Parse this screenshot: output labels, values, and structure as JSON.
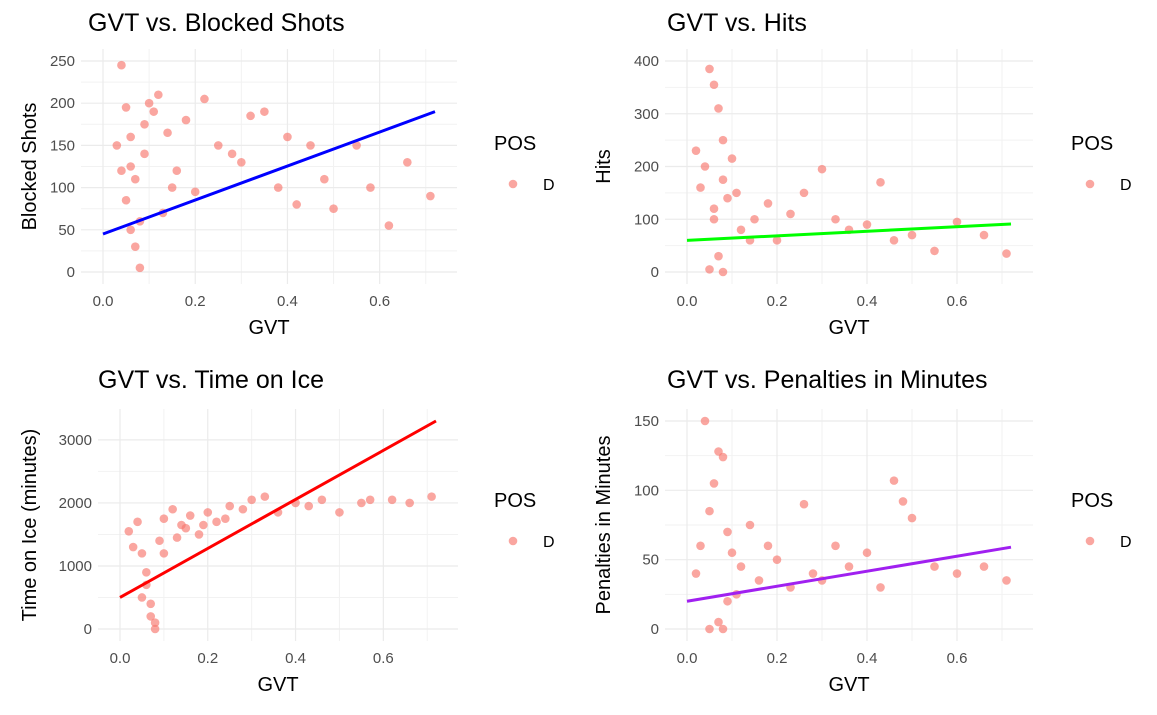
{
  "chart_data": [
    {
      "type": "scatter",
      "title": "GVT vs. Blocked Shots",
      "xlabel": "GVT",
      "ylabel": "Blocked Shots",
      "xlim": [
        0.0,
        0.72
      ],
      "ylim": [
        0,
        250
      ],
      "xticks": [
        0.0,
        0.2,
        0.4,
        0.6
      ],
      "xtick_labels": [
        "0.0",
        "0.2",
        "0.4",
        "0.6"
      ],
      "yticks": [
        0,
        50,
        100,
        150,
        200,
        250
      ],
      "ytick_labels": [
        "0",
        "50",
        "100",
        "150",
        "200",
        "250"
      ],
      "grid": true,
      "legend": {
        "title": "POS",
        "entries": [
          "D"
        ],
        "position": "right"
      },
      "point_color": "#F8766D",
      "series": [
        {
          "name": "D",
          "x": [
            0.04,
            0.05,
            0.06,
            0.07,
            0.08,
            0.03,
            0.06,
            0.09,
            0.1,
            0.12,
            0.14,
            0.16,
            0.18,
            0.2,
            0.22,
            0.25,
            0.28,
            0.3,
            0.32,
            0.35,
            0.38,
            0.4,
            0.42,
            0.45,
            0.48,
            0.5,
            0.55,
            0.58,
            0.62,
            0.66,
            0.71,
            0.05,
            0.07,
            0.09,
            0.11,
            0.13,
            0.15,
            0.08,
            0.06,
            0.04
          ],
          "y": [
            245,
            195,
            160,
            110,
            60,
            150,
            125,
            175,
            200,
            210,
            165,
            120,
            180,
            95,
            205,
            150,
            140,
            130,
            185,
            190,
            100,
            160,
            80,
            150,
            110,
            75,
            150,
            100,
            55,
            130,
            90,
            85,
            30,
            140,
            190,
            70,
            100,
            5,
            50,
            120
          ]
        }
      ],
      "trend_line": {
        "color": "#0000FF",
        "x": [
          0.0,
          0.72
        ],
        "y": [
          45,
          190
        ]
      }
    },
    {
      "type": "scatter",
      "title": "GVT vs. Hits",
      "xlabel": "GVT",
      "ylabel": "Hits",
      "xlim": [
        0.0,
        0.72
      ],
      "ylim": [
        0,
        400
      ],
      "xticks": [
        0.0,
        0.2,
        0.4,
        0.6
      ],
      "xtick_labels": [
        "0.0",
        "0.2",
        "0.4",
        "0.6"
      ],
      "yticks": [
        0,
        100,
        200,
        300,
        400
      ],
      "ytick_labels": [
        "0",
        "100",
        "200",
        "300",
        "400"
      ],
      "grid": true,
      "legend": {
        "title": "POS",
        "entries": [
          "D"
        ],
        "position": "right"
      },
      "point_color": "#F8766D",
      "series": [
        {
          "name": "D",
          "x": [
            0.05,
            0.06,
            0.07,
            0.08,
            0.04,
            0.03,
            0.06,
            0.09,
            0.1,
            0.12,
            0.15,
            0.18,
            0.2,
            0.23,
            0.26,
            0.3,
            0.33,
            0.36,
            0.4,
            0.43,
            0.46,
            0.5,
            0.55,
            0.6,
            0.66,
            0.71,
            0.07,
            0.05,
            0.08,
            0.11,
            0.14,
            0.02,
            0.08,
            0.06
          ],
          "y": [
            385,
            355,
            310,
            250,
            200,
            160,
            120,
            140,
            215,
            80,
            100,
            130,
            60,
            110,
            150,
            195,
            100,
            80,
            90,
            170,
            60,
            70,
            40,
            95,
            70,
            35,
            30,
            5,
            175,
            150,
            60,
            230,
            0,
            100
          ]
        }
      ],
      "trend_line": {
        "color": "#00FF00",
        "x": [
          0.0,
          0.72
        ],
        "y": [
          60,
          91
        ]
      }
    },
    {
      "type": "scatter",
      "title": "GVT vs. Time on Ice",
      "xlabel": "GVT",
      "ylabel": "Time on Ice (minutes)",
      "xlim": [
        0.0,
        0.72
      ],
      "ylim": [
        0,
        3300
      ],
      "xticks": [
        0.0,
        0.2,
        0.4,
        0.6
      ],
      "xtick_labels": [
        "0.0",
        "0.2",
        "0.4",
        "0.6"
      ],
      "yticks": [
        0,
        1000,
        2000,
        3000
      ],
      "ytick_labels": [
        "0",
        "1000",
        "2000",
        "3000"
      ],
      "grid": true,
      "legend": {
        "title": "POS",
        "entries": [
          "D"
        ],
        "position": "right"
      },
      "point_color": "#F8766D",
      "series": [
        {
          "name": "D",
          "x": [
            0.02,
            0.04,
            0.05,
            0.06,
            0.07,
            0.08,
            0.09,
            0.1,
            0.12,
            0.14,
            0.16,
            0.18,
            0.2,
            0.22,
            0.25,
            0.28,
            0.3,
            0.33,
            0.36,
            0.4,
            0.43,
            0.46,
            0.5,
            0.55,
            0.57,
            0.62,
            0.66,
            0.71,
            0.07,
            0.08,
            0.06,
            0.05,
            0.03,
            0.1,
            0.13,
            0.15,
            0.19,
            0.24
          ],
          "y": [
            1550,
            1700,
            1200,
            900,
            400,
            100,
            1400,
            1750,
            1900,
            1650,
            1800,
            1500,
            1850,
            1700,
            1950,
            1900,
            2050,
            2100,
            1850,
            2000,
            1950,
            2050,
            1850,
            2000,
            2050,
            2050,
            2000,
            2100,
            200,
            0,
            700,
            500,
            1300,
            1200,
            1450,
            1600,
            1650,
            1750
          ]
        }
      ],
      "trend_line": {
        "color": "#FF0000",
        "x": [
          0.0,
          0.72
        ],
        "y": [
          500,
          3300
        ]
      }
    },
    {
      "type": "scatter",
      "title": "GVT vs. Penalties in Minutes",
      "xlabel": "GVT",
      "ylabel": "Penalties in Minutes",
      "xlim": [
        0.0,
        0.72
      ],
      "ylim": [
        0,
        150
      ],
      "xticks": [
        0.0,
        0.2,
        0.4,
        0.6
      ],
      "xtick_labels": [
        "0.0",
        "0.2",
        "0.4",
        "0.6"
      ],
      "yticks": [
        0,
        50,
        100,
        150
      ],
      "ytick_labels": [
        "0",
        "50",
        "100",
        "150"
      ],
      "grid": true,
      "legend": {
        "title": "POS",
        "entries": [
          "D"
        ],
        "position": "right"
      },
      "point_color": "#F8766D",
      "series": [
        {
          "name": "D",
          "x": [
            0.04,
            0.07,
            0.08,
            0.06,
            0.05,
            0.03,
            0.09,
            0.1,
            0.12,
            0.14,
            0.16,
            0.18,
            0.2,
            0.23,
            0.26,
            0.28,
            0.3,
            0.33,
            0.36,
            0.4,
            0.43,
            0.46,
            0.48,
            0.5,
            0.55,
            0.6,
            0.66,
            0.71,
            0.05,
            0.07,
            0.09,
            0.11,
            0.02,
            0.08
          ],
          "y": [
            150,
            128,
            124,
            105,
            85,
            60,
            70,
            55,
            45,
            75,
            35,
            60,
            50,
            30,
            90,
            40,
            35,
            60,
            45,
            55,
            30,
            107,
            92,
            80,
            45,
            40,
            45,
            35,
            0,
            5,
            20,
            25,
            40,
            0
          ]
        }
      ],
      "trend_line": {
        "color": "#A020F0",
        "x": [
          0.0,
          0.72
        ],
        "y": [
          20,
          59
        ]
      }
    }
  ]
}
